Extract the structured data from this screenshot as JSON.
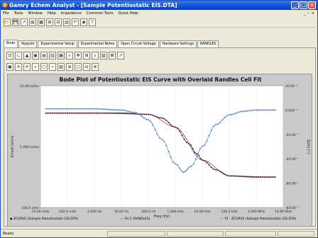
{
  "window": {
    "title": "Gamry Echem Analyst - [Sample Potentiostatic EIS.DTA]",
    "controls": [
      "_",
      "□",
      "×"
    ]
  },
  "menu": {
    "items": [
      "File",
      "Tools",
      "Window",
      "Help",
      "Impedance",
      "Common Tools",
      "Quick Help"
    ],
    "mdi": "_ ♢ ×"
  },
  "toolbar_main": [
    "📂",
    "💾",
    "↗",
    "▤",
    "▦",
    "⊞",
    "⊟",
    "▥",
    "↶",
    "◉",
    "?"
  ],
  "tabs": [
    {
      "label": "Bode",
      "active": true
    },
    {
      "label": "Nyquist",
      "active": false
    },
    {
      "label": "Experimental Setup",
      "active": false
    },
    {
      "label": "Experimental Notes",
      "active": false
    },
    {
      "label": "Open Circuit Voltage",
      "active": false
    },
    {
      "label": "Hardware Settings",
      "active": false
    },
    {
      "label": "RANDLES",
      "active": false
    }
  ],
  "toolbar_chart": [
    "⊡",
    "∟",
    "▲",
    "▣",
    "▤",
    "▥",
    "▦",
    "⌕",
    "✥",
    "⊞",
    "⌕",
    "▧",
    "⊠",
    "↗"
  ],
  "toolbar_chart2": [
    "▣",
    "✕",
    "✕",
    "⌕",
    "▢",
    "⌁",
    "▨",
    "⊕",
    "▢",
    "⊖",
    "⊗"
  ],
  "chart_data": {
    "type": "line",
    "title": "Bode Plot of Potentiostatic EIS Curve with Overlaid Randles Cell Fit",
    "xlabel": "Freq (Hz)",
    "ylabel": "Zmod (ohm)",
    "y2label": "Zphz (°)",
    "x_ticks": [
      "10.00 mHz",
      "100.0 mHz",
      "1.000 Hz",
      "10.00 Hz",
      "100.0 Hz",
      "1.000 kHz",
      "10.00 kHz",
      "100.0 kHz",
      "1.000 MHz",
      "10.00 MHz"
    ],
    "y_ticks": [
      "10.00 kohm",
      "1.000 kohm",
      "100.0 ohm"
    ],
    "y2_ticks": [
      "20.00 °",
      "0.000 °",
      "-20.00 °",
      "-40.00 °",
      "-60.00 °",
      "-80.00 °"
    ],
    "xlim_log10": [
      -2,
      7
    ],
    "ylim_log10": [
      2,
      4
    ],
    "y2lim": [
      -80,
      20
    ],
    "series": [
      {
        "name": "ZCURVE (Sample Potentiostatic EIS.DTA)",
        "color": "#7a2b2b",
        "axis": "y",
        "x_log10": [
          -1.8,
          -1,
          0,
          1,
          2,
          2.5,
          3,
          3.5,
          3.8,
          4,
          4.5,
          5,
          6,
          6.7
        ],
        "y_log10": [
          3.55,
          3.55,
          3.55,
          3.55,
          3.53,
          3.47,
          3.32,
          3.05,
          2.88,
          2.78,
          2.62,
          2.52,
          2.5,
          2.5
        ]
      },
      {
        "name": "Y2 - ZCURVE (Sample Potentiostatic EIS.DTA)",
        "color": "#5b8fd6",
        "axis": "y2",
        "x_log10": [
          -1.8,
          -1,
          0,
          1,
          1.5,
          2,
          2.5,
          3,
          3.3,
          3.6,
          4,
          4.5,
          5,
          5.5,
          6,
          6.7
        ],
        "y2_deg": [
          1,
          1,
          1,
          0,
          -2,
          -8,
          -24,
          -44,
          -51,
          -46,
          -30,
          -12,
          -4,
          -1,
          0,
          0
        ]
      },
      {
        "name": "Fit 1 (RANDLES)",
        "color": "#333333",
        "axis": "y",
        "x_log10": [
          -1.8,
          0,
          2,
          3,
          4,
          5,
          6.7
        ],
        "y_log10": [
          3.55,
          3.55,
          3.53,
          3.32,
          2.78,
          2.52,
          2.5
        ]
      }
    ]
  },
  "legend": {
    "left": "ZCURVE (Sample Potentiostatic EIS.DTA)",
    "mid": "— Fit 1 (RANDLES)",
    "right": "— Y2 - ZCURVE (Sample Potentiostatic EIS.DTA)"
  },
  "status": {
    "text": "Ready"
  }
}
